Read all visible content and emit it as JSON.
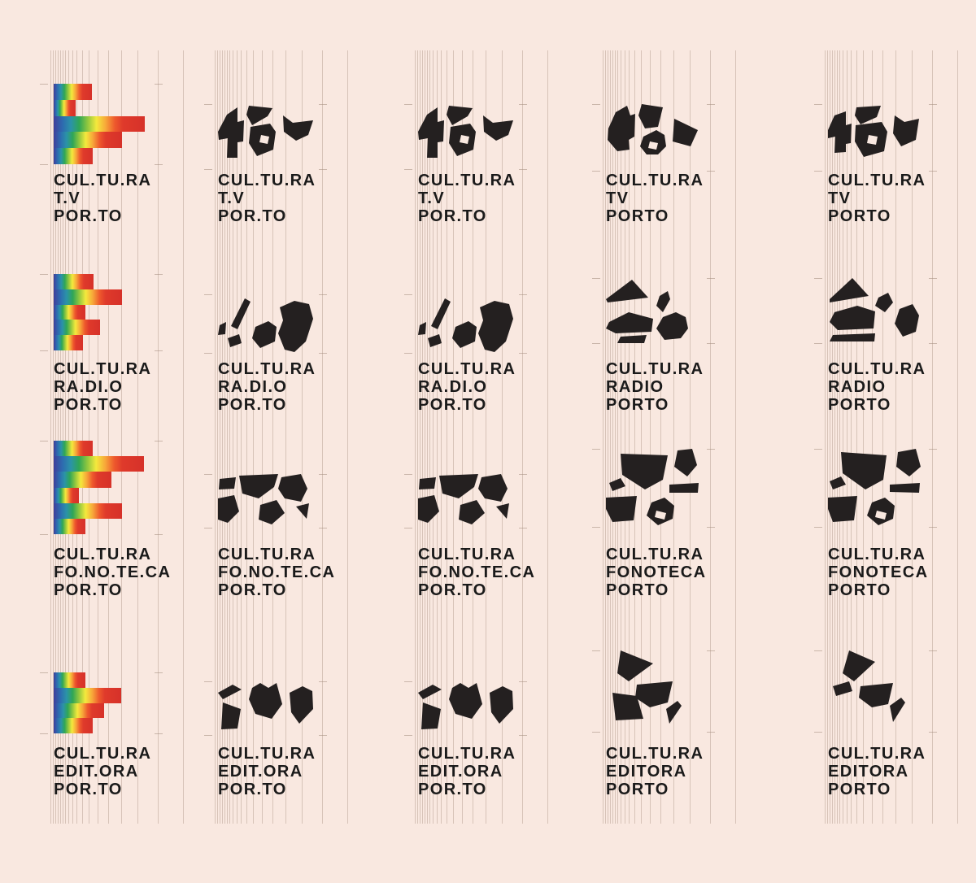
{
  "page": {
    "title": "Cultura Porto sub-brand logo grid",
    "background": "#f9e8e0",
    "grid_line_color": "rgba(164,141,126,0.40)",
    "text_color": "#1a1a1a",
    "fragment_color": "#242020",
    "rainbow_stops": [
      "#3f3e9b",
      "#2d6cb0",
      "#2b93a8",
      "#2fa656",
      "#8dc63f",
      "#f4e93d",
      "#f7a839",
      "#ee5a2d",
      "#df3a2b",
      "#d63129"
    ]
  },
  "rows": [
    {
      "name": "tv",
      "rainbow_bar_widths": [
        47,
        27,
        112,
        84,
        48
      ],
      "cells": [
        {
          "logo_icon": "rainbow-bars-tv-logo",
          "lines": [
            "CUL.TU.RA",
            "T.V",
            "POR.TO"
          ]
        },
        {
          "logo_icon": "fragments-tv-logo",
          "lines": [
            "CUL.TU.RA",
            "T.V",
            "POR.TO"
          ]
        },
        {
          "logo_icon": "fragments-tv-logo",
          "lines": [
            "CUL.TU.RA",
            "T.V",
            "POR.TO"
          ]
        },
        {
          "logo_icon": "fragments-tv-logo-rounded",
          "lines": [
            "CUL.TU.RA",
            "TV",
            "PORTO"
          ]
        },
        {
          "logo_icon": "fragments-tv-logo-sharp",
          "lines": [
            "CUL.TU.RA",
            "TV",
            "PORTO"
          ]
        }
      ]
    },
    {
      "name": "radio",
      "rainbow_bar_widths": [
        49,
        84,
        39,
        57,
        36
      ],
      "cells": [
        {
          "logo_icon": "rainbow-bars-radio-logo",
          "lines": [
            "CUL.TU.RA",
            "RA.DI.O",
            "POR.TO"
          ]
        },
        {
          "logo_icon": "fragments-radio-logo",
          "lines": [
            "CUL.TU.RA",
            "RA.DI.O",
            "POR.TO"
          ]
        },
        {
          "logo_icon": "fragments-radio-logo",
          "lines": [
            "CUL.TU.RA",
            "RA.DI.O",
            "POR.TO"
          ]
        },
        {
          "logo_icon": "fragments-radio-logo-rounded",
          "lines": [
            "CUL.TU.RA",
            "RADIO",
            "PORTO"
          ]
        },
        {
          "logo_icon": "fragments-radio-logo-sharp",
          "lines": [
            "CUL.TU.RA",
            "RADIO",
            "PORTO"
          ]
        }
      ]
    },
    {
      "name": "fonoteca",
      "rainbow_bar_widths": [
        48,
        111,
        71,
        31,
        84,
        39
      ],
      "cells": [
        {
          "logo_icon": "rainbow-bars-fonoteca-logo",
          "lines": [
            "CUL.TU.RA",
            "FO.NO.TE.CA",
            "POR.TO"
          ]
        },
        {
          "logo_icon": "fragments-fonoteca-logo",
          "lines": [
            "CUL.TU.RA",
            "FO.NO.TE.CA",
            "POR.TO"
          ]
        },
        {
          "logo_icon": "fragments-fonoteca-logo",
          "lines": [
            "CUL.TU.RA",
            "FO.NO.TE.CA",
            "POR.TO"
          ]
        },
        {
          "logo_icon": "fragments-fonoteca-logo-rounded",
          "lines": [
            "CUL.TU.RA",
            "FONOTECA",
            "PORTO"
          ]
        },
        {
          "logo_icon": "fragments-fonoteca-logo-sharp",
          "lines": [
            "CUL.TU.RA",
            "FONOTECA",
            "PORTO"
          ]
        }
      ]
    },
    {
      "name": "editora",
      "rainbow_bar_widths": [
        39,
        83,
        62,
        48
      ],
      "cells": [
        {
          "logo_icon": "rainbow-bars-editora-logo",
          "lines": [
            "CUL.TU.RA",
            "EDIT.ORA",
            "POR.TO"
          ]
        },
        {
          "logo_icon": "fragments-editora-logo",
          "lines": [
            "CUL.TU.RA",
            "EDIT.ORA",
            "POR.TO"
          ]
        },
        {
          "logo_icon": "fragments-editora-logo",
          "lines": [
            "CUL.TU.RA",
            "EDIT.ORA",
            "POR.TO"
          ]
        },
        {
          "logo_icon": "fragments-editora-logo-rounded",
          "lines": [
            "CUL.TU.RA",
            "EDITORA",
            "PORTO"
          ]
        },
        {
          "logo_icon": "fragments-editora-logo-sharp",
          "lines": [
            "CUL.TU.RA",
            "EDITORA",
            "PORTO"
          ]
        }
      ]
    }
  ]
}
